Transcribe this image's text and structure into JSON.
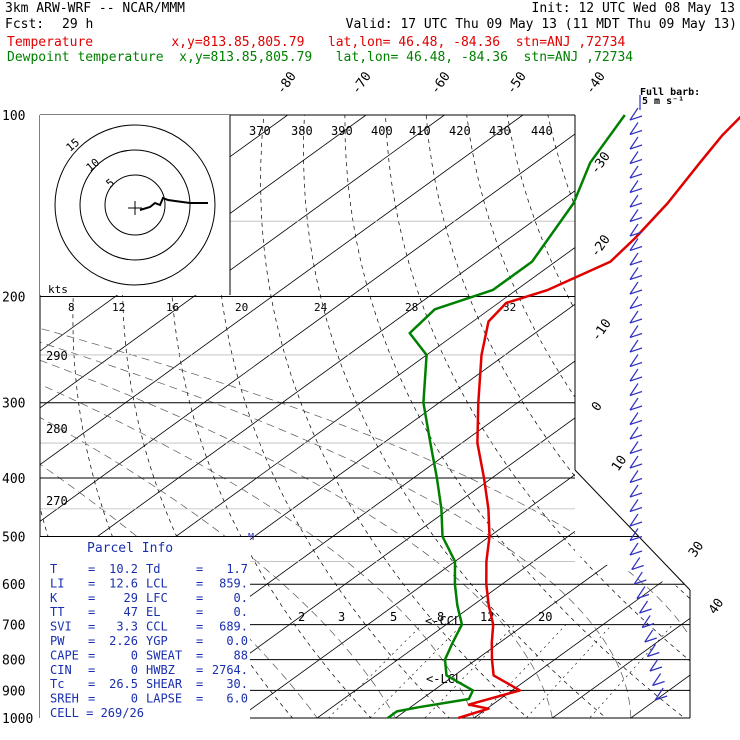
{
  "header": {
    "model": "3km ARW-WRF -- NCAR/MMM",
    "init": "Init: 12 UTC Wed 08 May 13",
    "fcst_label": "Fcst:",
    "fcst_value": "29 h",
    "valid": "Valid: 17 UTC Thu 09 May 13 (11 MDT Thu 09 May 13)",
    "temp_line": "Temperature          x,y=813.85,805.79   lat,lon= 46.48, -84.36  stn=ANJ ,72734",
    "dew_line": "Dewpoint temperature  x,y=813.85,805.79   lat,lon= 46.48, -84.36  stn=ANJ ,72734"
  },
  "colors": {
    "temperature": "#e00000",
    "dewpoint": "#008000",
    "barbs": "#3030c0"
  },
  "chart_data": {
    "type": "line",
    "title": "",
    "ylabel": "",
    "y_scale": "log-pressure",
    "pressure_levels": [
      100,
      200,
      300,
      400,
      500,
      600,
      700,
      800,
      900,
      1000
    ],
    "temperature_axis_labels": [
      "-80",
      "-70",
      "-60",
      "-50",
      "-40",
      "-30",
      "-20",
      "-10",
      "0",
      "10",
      "30",
      "40"
    ],
    "theta_labels": [
      "370",
      "380",
      "390",
      "400",
      "410",
      "420",
      "430",
      "440",
      "290",
      "280",
      "270"
    ],
    "mixing_ratio_labels": [
      "2",
      "3",
      "5",
      "8",
      "12",
      "20"
    ],
    "annotations": {
      "ccl": "<-CCL",
      "lcl": "<-LCL",
      "barb_legend": "Full barb:",
      "barb_units": "5 m s⁻¹",
      "hodo_units": "kts"
    },
    "hodograph": {
      "ring_labels": [
        "15",
        "10",
        "5"
      ],
      "speed_axis_labels": [
        "8",
        "12",
        "16",
        "20",
        "24",
        "28",
        "32"
      ]
    },
    "series": [
      {
        "name": "Temperature",
        "points": [
          [
            1000,
            8
          ],
          [
            965,
            10.2
          ],
          [
            950,
            7
          ],
          [
            900,
            11
          ],
          [
            850,
            5
          ],
          [
            800,
            2
          ],
          [
            750,
            -1
          ],
          [
            700,
            -4
          ],
          [
            650,
            -8
          ],
          [
            600,
            -12
          ],
          [
            550,
            -16
          ],
          [
            500,
            -20
          ],
          [
            450,
            -25
          ],
          [
            400,
            -31
          ],
          [
            350,
            -38
          ],
          [
            300,
            -45
          ],
          [
            250,
            -53
          ],
          [
            220,
            -58
          ],
          [
            205,
            -59
          ],
          [
            195,
            -56
          ],
          [
            175,
            -53
          ],
          [
            160,
            -54
          ],
          [
            140,
            -56
          ],
          [
            120,
            -59
          ],
          [
            108,
            -61
          ],
          [
            100,
            -62
          ]
        ]
      },
      {
        "name": "Dewpoint temperature",
        "points": [
          [
            1000,
            -1
          ],
          [
            975,
            -1
          ],
          [
            960,
            1
          ],
          [
            930,
            6
          ],
          [
            900,
            5
          ],
          [
            850,
            -1
          ],
          [
            800,
            -4
          ],
          [
            750,
            -6
          ],
          [
            700,
            -8
          ],
          [
            650,
            -12
          ],
          [
            600,
            -16
          ],
          [
            550,
            -20
          ],
          [
            500,
            -26
          ],
          [
            450,
            -31
          ],
          [
            400,
            -37
          ],
          [
            350,
            -44
          ],
          [
            300,
            -52
          ],
          [
            250,
            -60
          ],
          [
            230,
            -66
          ],
          [
            210,
            -67
          ],
          [
            195,
            -63
          ],
          [
            175,
            -63
          ],
          [
            140,
            -68
          ],
          [
            120,
            -73
          ],
          [
            100,
            -77
          ]
        ]
      }
    ]
  },
  "parcel": {
    "title": "Parcel Info",
    "rows": [
      {
        "l1": "T",
        "v1": "10.2",
        "l2": "Td",
        "v2": "1.7"
      },
      {
        "l1": "LI",
        "v1": "12.6",
        "l2": "LCL",
        "v2": "859."
      },
      {
        "l1": "K",
        "v1": "29",
        "l2": "LFC",
        "v2": "0."
      },
      {
        "l1": "TT",
        "v1": "47",
        "l2": "EL",
        "v2": "0."
      },
      {
        "l1": "SVI",
        "v1": "3.3",
        "l2": "CCL",
        "v2": "689."
      },
      {
        "l1": "PW",
        "v1": "2.26",
        "l2": "YGP",
        "v2": "0.0"
      },
      {
        "l1": "CAPE",
        "v1": "0",
        "l2": "SWEAT",
        "v2": "88"
      },
      {
        "l1": "CIN",
        "v1": "0",
        "l2": "HWBZ",
        "v2": "2764."
      },
      {
        "l1": "Tc",
        "v1": "26.5",
        "l2": "SHEAR",
        "v2": "30."
      },
      {
        "l1": "SREH",
        "v1": "0",
        "l2": "LAPSE",
        "v2": "6.0"
      }
    ],
    "cell": "CELL = 269/26"
  }
}
